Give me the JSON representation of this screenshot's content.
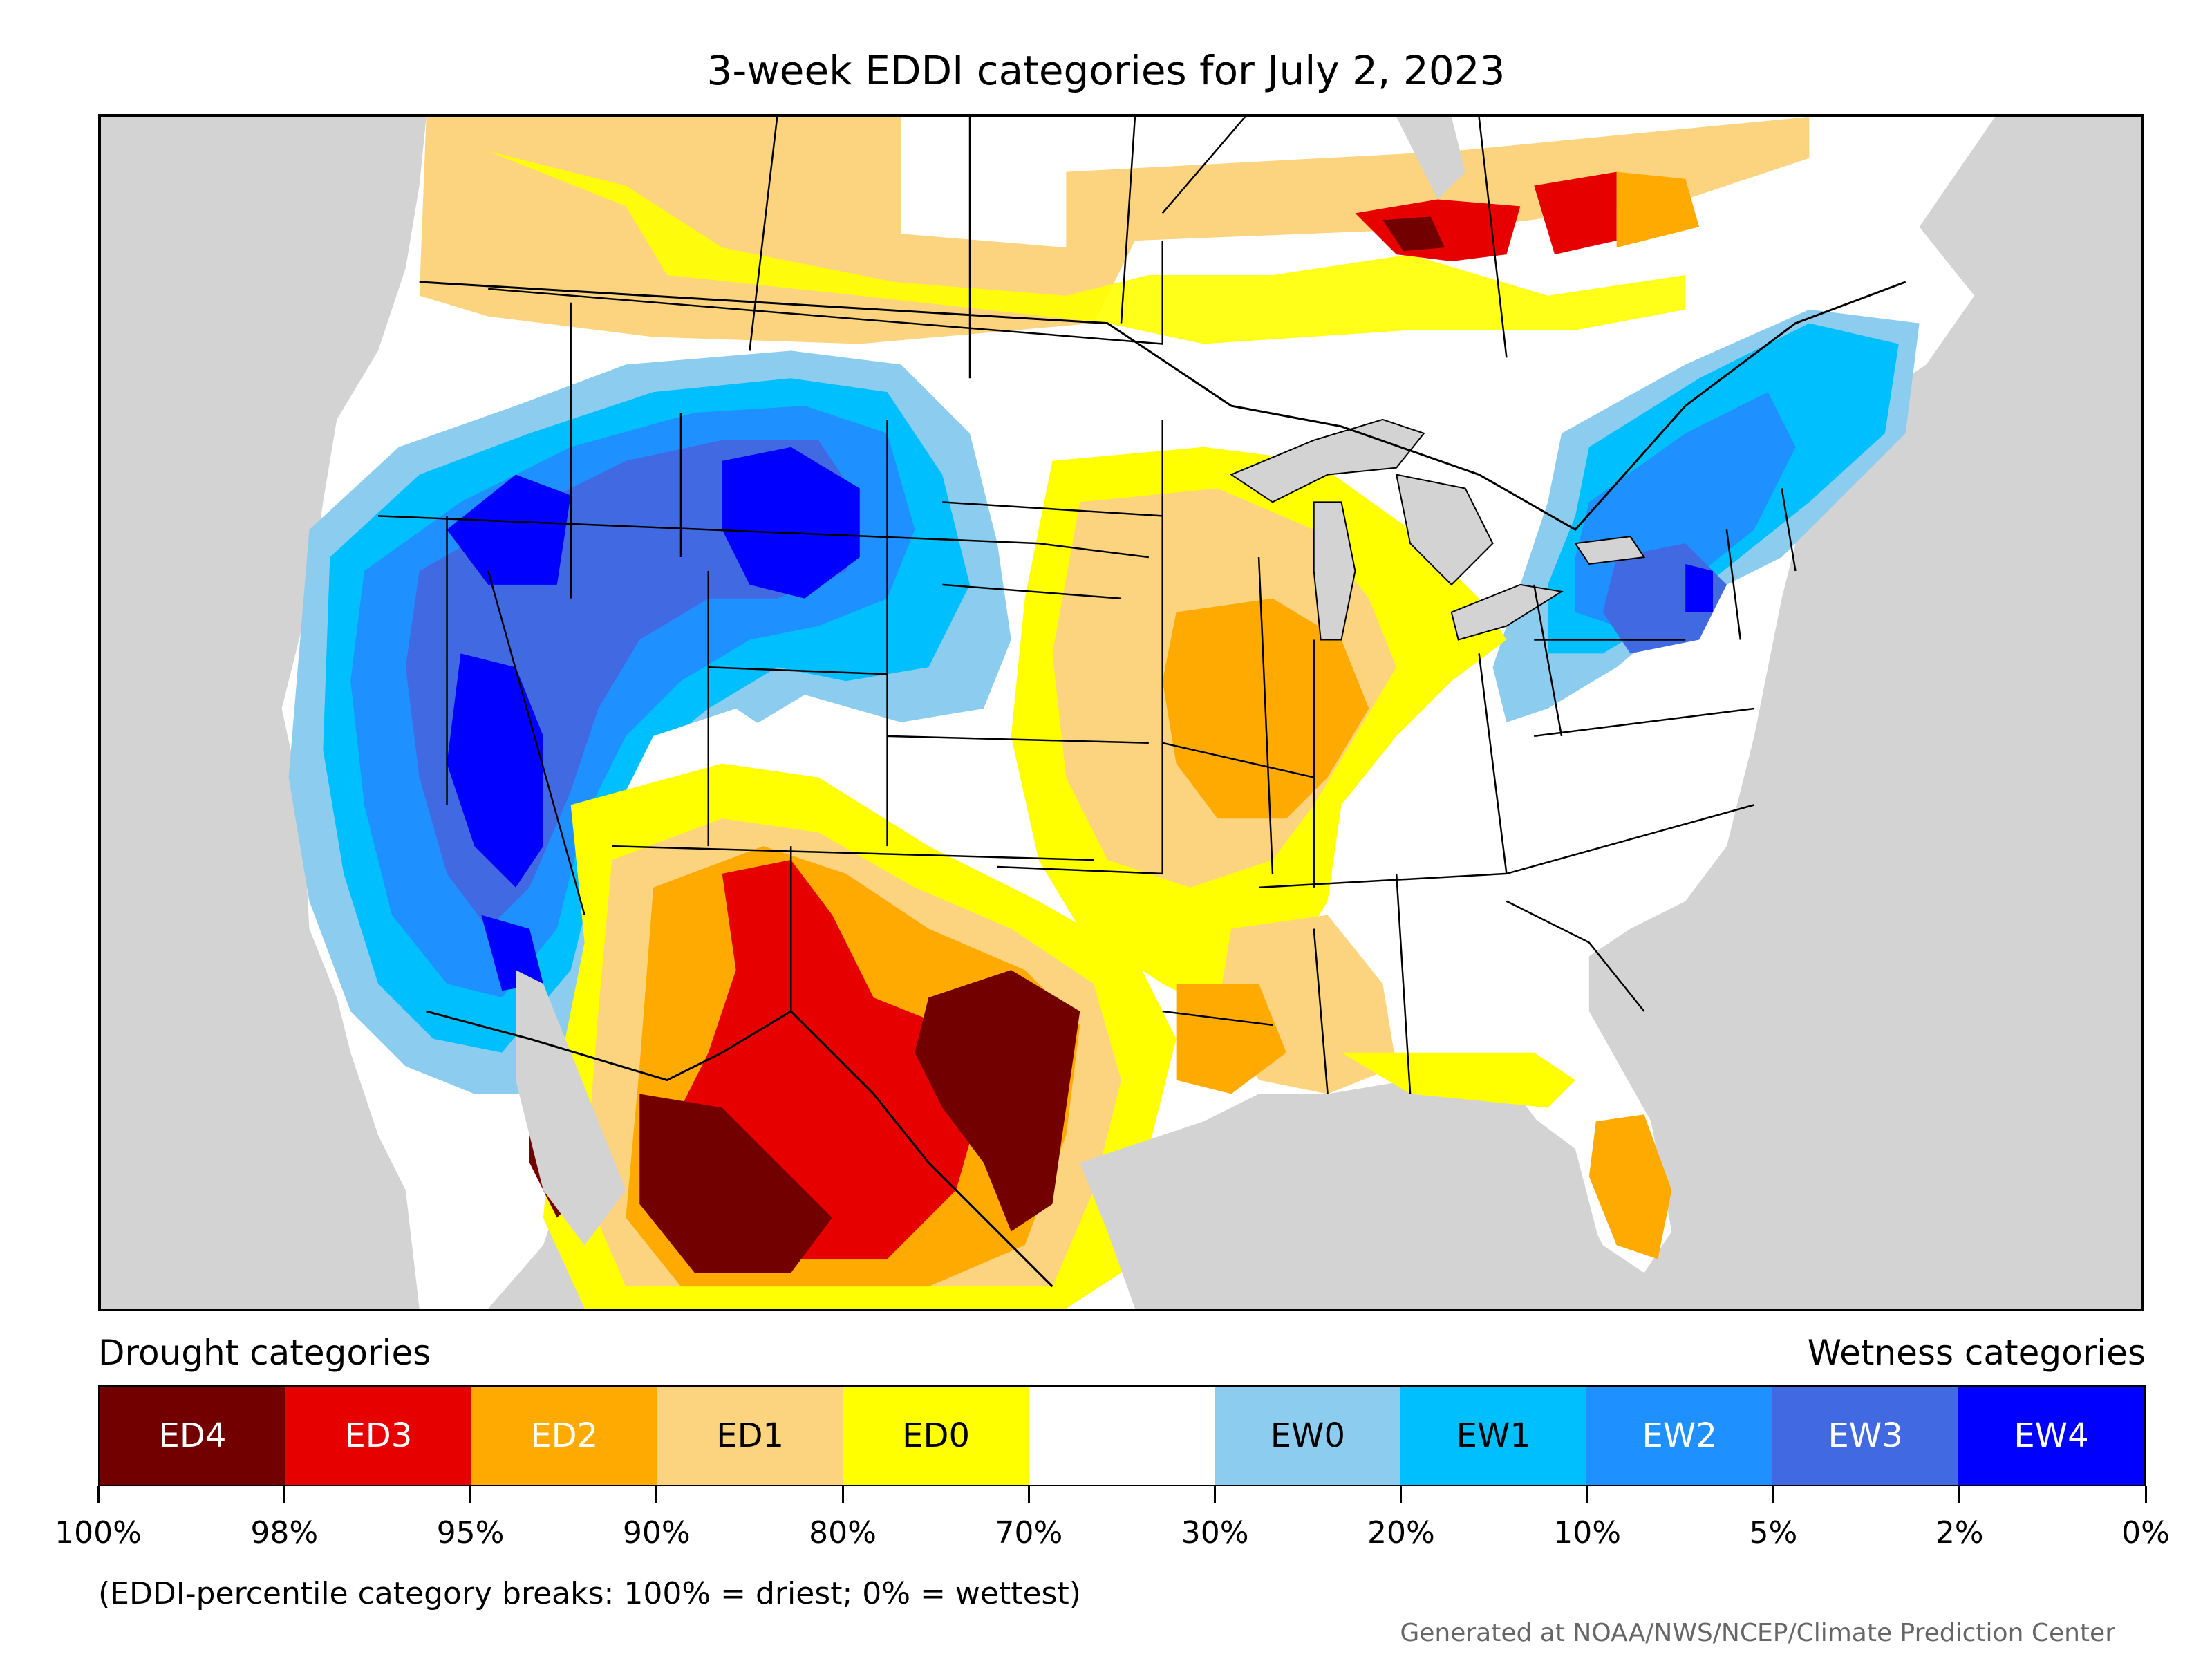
{
  "title": "3-week EDDI categories for July 2, 2023",
  "legend": {
    "left_title": "Drought categories",
    "right_title": "Wetness categories",
    "categories": [
      {
        "label": "ED4",
        "color": "#730000",
        "text_color": "#ffffff"
      },
      {
        "label": "ED3",
        "color": "#e60000",
        "text_color": "#ffffff"
      },
      {
        "label": "ED2",
        "color": "#ffaa00",
        "text_color": "#ffffff"
      },
      {
        "label": "ED1",
        "color": "#fcd37f",
        "text_color": "#000000"
      },
      {
        "label": "ED0",
        "color": "#ffff00",
        "text_color": "#000000"
      },
      {
        "label": "",
        "color": "#ffffff",
        "text_color": "#000000"
      },
      {
        "label": "EW0",
        "color": "#8ccdef",
        "text_color": "#000000"
      },
      {
        "label": "EW1",
        "color": "#00bfff",
        "text_color": "#000000"
      },
      {
        "label": "EW2",
        "color": "#1e90ff",
        "text_color": "#ffffff"
      },
      {
        "label": "EW3",
        "color": "#4169e1",
        "text_color": "#ffffff"
      },
      {
        "label": "EW4",
        "color": "#0000ff",
        "text_color": "#ffffff"
      }
    ],
    "breaks": [
      "100%",
      "98%",
      "95%",
      "90%",
      "80%",
      "70%",
      "30%",
      "20%",
      "10%",
      "5%",
      "2%",
      "0%"
    ]
  },
  "note": "(EDDI-percentile category breaks: 100% = driest; 0% = wettest)",
  "credit": "Generated at NOAA/NWS/NCEP/Climate Prediction Center"
}
